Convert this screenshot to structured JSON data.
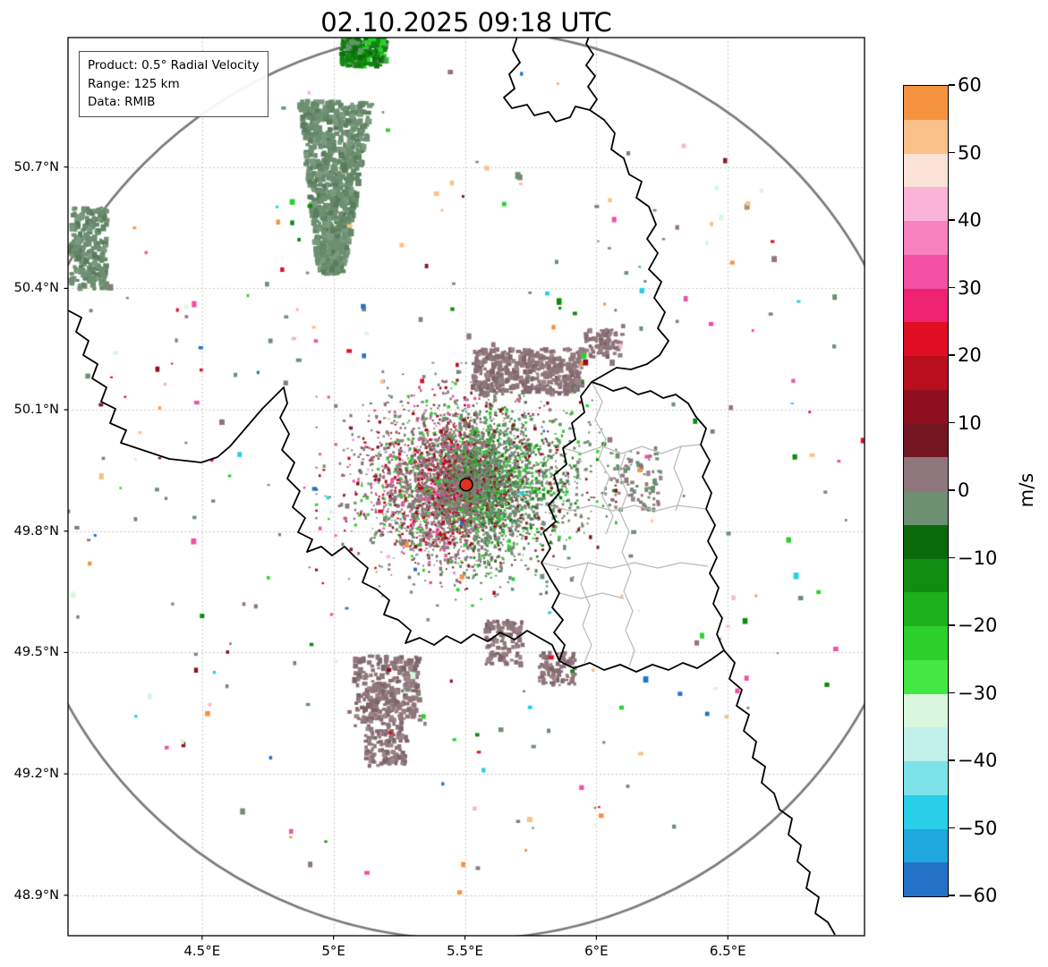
{
  "info_box": {
    "lines": [
      "Product: 0.5° Radial Velocity",
      "Range: 125 km",
      "Data: RMIB"
    ]
  },
  "chart_data": {
    "type": "heatmap",
    "title": "02.10.2025 09:18 UTC",
    "product": "0.5° Radial Velocity",
    "range_km": 125,
    "source": "RMIB",
    "units": "m/s",
    "radar_site": {
      "lon": 5.505,
      "lat": 49.915,
      "marker_color": "#e03020"
    },
    "range_ring": {
      "radius_km": 125,
      "color": "#7a7a7a"
    },
    "axes": {
      "lon_min": 3.99,
      "lon_max": 7.02,
      "lat_min": 48.8,
      "lat_max": 51.02,
      "grid": "dotted",
      "grid_color": "#bcbcbc",
      "x_ticks": [
        {
          "lon": 4.5,
          "label": "4.5°E"
        },
        {
          "lon": 5.0,
          "label": "5°E"
        },
        {
          "lon": 5.5,
          "label": "5.5°E"
        },
        {
          "lon": 6.0,
          "label": "6°E"
        },
        {
          "lon": 6.5,
          "label": "6.5°E"
        }
      ],
      "y_ticks": [
        {
          "lat": 50.7,
          "label": "50.7°N"
        },
        {
          "lat": 50.4,
          "label": "50.4°N"
        },
        {
          "lat": 50.1,
          "label": "50.1°N"
        },
        {
          "lat": 49.8,
          "label": "49.8°N"
        },
        {
          "lat": 49.5,
          "label": "49.5°N"
        },
        {
          "lat": 49.2,
          "label": "49.2°N"
        },
        {
          "lat": 48.9,
          "label": "48.9°N"
        }
      ]
    },
    "colorbar": {
      "label": "m/s",
      "min": -60,
      "max": 60,
      "ticks": [
        {
          "value": 60,
          "label": "60"
        },
        {
          "value": 50,
          "label": "50"
        },
        {
          "value": 40,
          "label": "40"
        },
        {
          "value": 30,
          "label": "30"
        },
        {
          "value": 20,
          "label": "20"
        },
        {
          "value": 10,
          "label": "10"
        },
        {
          "value": 0,
          "label": "0"
        },
        {
          "value": -10,
          "label": "−10"
        },
        {
          "value": -20,
          "label": "−20"
        },
        {
          "value": -30,
          "label": "−30"
        },
        {
          "value": -40,
          "label": "−40"
        },
        {
          "value": -50,
          "label": "−50"
        },
        {
          "value": -60,
          "label": "−60"
        }
      ],
      "bands": [
        {
          "from": -60,
          "to": -55,
          "color": "#2272c8"
        },
        {
          "from": -55,
          "to": -50,
          "color": "#1ea8de"
        },
        {
          "from": -50,
          "to": -45,
          "color": "#27cfe8"
        },
        {
          "from": -45,
          "to": -40,
          "color": "#7ce3ea"
        },
        {
          "from": -40,
          "to": -35,
          "color": "#c2f0ea"
        },
        {
          "from": -35,
          "to": -30,
          "color": "#d9f7dc"
        },
        {
          "from": -30,
          "to": -25,
          "color": "#44e844"
        },
        {
          "from": -25,
          "to": -20,
          "color": "#2bd02b"
        },
        {
          "from": -20,
          "to": -15,
          "color": "#1cb01c"
        },
        {
          "from": -15,
          "to": -10,
          "color": "#108c10"
        },
        {
          "from": -10,
          "to": -5,
          "color": "#0a6a0a"
        },
        {
          "from": -5,
          "to": 0,
          "color": "#6d8f72"
        },
        {
          "from": 0,
          "to": 5,
          "color": "#8f767c"
        },
        {
          "from": 5,
          "to": 10,
          "color": "#731522"
        },
        {
          "from": 10,
          "to": 15,
          "color": "#8f0f1e"
        },
        {
          "from": 15,
          "to": 20,
          "color": "#b90e1e"
        },
        {
          "from": 20,
          "to": 25,
          "color": "#e00e22"
        },
        {
          "from": 25,
          "to": 30,
          "color": "#ee2270"
        },
        {
          "from": 30,
          "to": 35,
          "color": "#f24fa4"
        },
        {
          "from": 35,
          "to": 40,
          "color": "#f680c0"
        },
        {
          "from": 40,
          "to": 45,
          "color": "#fab4d8"
        },
        {
          "from": 45,
          "to": 50,
          "color": "#fce3d8"
        },
        {
          "from": 50,
          "to": 55,
          "color": "#fac089"
        },
        {
          "from": 55,
          "to": 60,
          "color": "#f5923f"
        }
      ]
    },
    "palettes": {
      "muted_green": [
        "#6d8f72",
        "#6d8f72",
        "#6d8f72",
        "#628765",
        "#7a9b7f",
        "#587c5c"
      ],
      "muted_mauve": [
        "#8f767c",
        "#8f767c",
        "#8f767c",
        "#856c72",
        "#9c8489",
        "#7c6368"
      ],
      "dark_green": [
        "#187c18",
        "#0d8a0d",
        "#0a6e0a",
        "#2bd02b",
        "#6d8f72"
      ],
      "mixed_muted": [
        "#6d8f72",
        "#8f767c",
        "#6d8f72",
        "#8f767c",
        "#9c8489",
        "#628765"
      ],
      "dipole_green": [
        "#6d8f72",
        "#6d8f72",
        "#6d8f72",
        "#628765",
        "#587c5c",
        "#2bd02b",
        "#0d8a0d",
        "#8f0f1e",
        "#8f767c"
      ],
      "dipole_mauve": [
        "#8f767c",
        "#8f767c",
        "#8f767c",
        "#856c72",
        "#7c6368",
        "#8f0f1e",
        "#b90e1e",
        "#f24fa4",
        "#2bd02b",
        "#6d8f72"
      ],
      "accents": [
        "#2bd02b",
        "#0d8a0d",
        "#8f0f1e",
        "#e00e22",
        "#f24fa4",
        "#fab4d8",
        "#27cfe8",
        "#fac089",
        "#2272c8",
        "#f5923f",
        "#6d8f72",
        "#6d8f72",
        "#6d8f72",
        "#8f767c",
        "#8f767c",
        "#8f767c",
        "#d7f7dc"
      ]
    },
    "echo_regions": [
      {
        "name": "central-velocity-field",
        "shape": "gauss",
        "lon": 5.505,
        "lat": 49.915,
        "rx_deg": 0.19,
        "ry_deg": 0.1,
        "count": 4200,
        "palette": "dipole",
        "size": [
          1.6,
          3.6
        ]
      },
      {
        "name": "central-core",
        "shape": "gauss",
        "lon": 5.505,
        "lat": 49.915,
        "rx_deg": 0.07,
        "ry_deg": 0.05,
        "count": 1600,
        "palette": "dipole",
        "size": [
          1.5,
          3.0
        ]
      },
      {
        "name": "nw-streak",
        "shape": "strip",
        "from": [
          5.01,
          50.86
        ],
        "to": [
          4.99,
          50.44
        ],
        "half_w_deg": [
          0.14,
          0.05
        ],
        "count": 1000,
        "palette": "muted_green",
        "size": [
          3.5,
          7.0
        ]
      },
      {
        "name": "west-patch",
        "shape": "rect",
        "lon0": 4.0,
        "lon1": 4.14,
        "lat0": 50.4,
        "lat1": 50.6,
        "count": 260,
        "palette": "muted_green",
        "size": [
          3.5,
          6.5
        ]
      },
      {
        "name": "north-blob",
        "shape": "rect",
        "lon0": 5.03,
        "lon1": 5.2,
        "lat0": 50.95,
        "lat1": 51.02,
        "count": 220,
        "palette": "dark_green",
        "size": [
          3.5,
          6.5
        ]
      },
      {
        "name": "ne-mauve-patch",
        "shape": "rect",
        "lon0": 5.53,
        "lon1": 5.95,
        "lat0": 50.14,
        "lat1": 50.25,
        "count": 430,
        "palette": "muted_mauve",
        "size": [
          3.0,
          6.0
        ]
      },
      {
        "name": "ne-mauve-small",
        "shape": "rect",
        "lon0": 5.95,
        "lon1": 6.1,
        "lat0": 50.23,
        "lat1": 50.3,
        "count": 90,
        "palette": "muted_mauve",
        "size": [
          3.0,
          5.0
        ]
      },
      {
        "name": "lux-west-speckle",
        "shape": "rect",
        "lon0": 6.05,
        "lon1": 6.25,
        "lat0": 49.85,
        "lat1": 50.0,
        "count": 80,
        "palette": "mixed_muted",
        "size": [
          2.5,
          5.0
        ]
      },
      {
        "name": "south-patch-1",
        "shape": "rect",
        "lon0": 5.08,
        "lon1": 5.33,
        "lat0": 49.33,
        "lat1": 49.49,
        "count": 300,
        "palette": "muted_mauve",
        "size": [
          3.0,
          6.0
        ]
      },
      {
        "name": "south-patch-2",
        "shape": "rect",
        "lon0": 5.12,
        "lon1": 5.28,
        "lat0": 49.22,
        "lat1": 49.33,
        "count": 130,
        "palette": "muted_mauve",
        "size": [
          3.0,
          5.5
        ]
      },
      {
        "name": "south-patch-3",
        "shape": "rect",
        "lon0": 5.58,
        "lon1": 5.72,
        "lat0": 49.47,
        "lat1": 49.58,
        "count": 110,
        "palette": "muted_mauve",
        "size": [
          3.0,
          5.5
        ]
      },
      {
        "name": "southeast-patch",
        "shape": "rect",
        "lon0": 5.78,
        "lon1": 5.92,
        "lat0": 49.42,
        "lat1": 49.5,
        "count": 100,
        "palette": "muted_mauve",
        "size": [
          3.0,
          5.0
        ]
      },
      {
        "name": "scattered-echoes",
        "shape": "disc",
        "lon": 5.505,
        "lat": 49.915,
        "r_deg": 1.05,
        "count": 330,
        "palette": "accents",
        "size": [
          2.5,
          6.0
        ]
      }
    ]
  }
}
